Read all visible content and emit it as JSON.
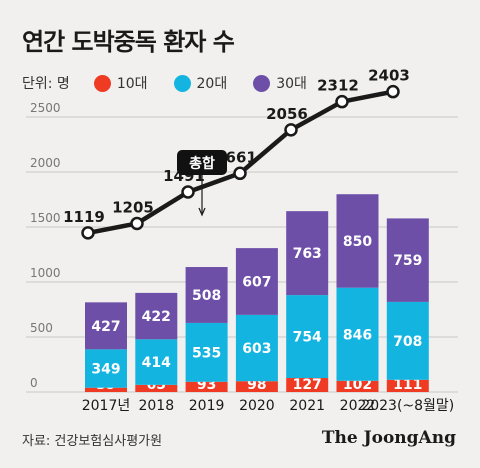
{
  "title": "연간 도박중독 환자 수",
  "legend": {
    "unit": "단위: 명",
    "items": [
      {
        "label": "10대",
        "color": "#ef3b24"
      },
      {
        "label": "20대",
        "color": "#13b5e0"
      },
      {
        "label": "30대",
        "color": "#6d4fa8"
      }
    ]
  },
  "source": "자료: 건강보험심사평가원",
  "brand": "The JoongAng",
  "chart_data": {
    "type": "bar",
    "stacked": true,
    "categories": [
      "2017년",
      "2018",
      "2019",
      "2020",
      "2021",
      "2022",
      "2023(~8월말)"
    ],
    "series": [
      {
        "name": "10대",
        "color": "#ef3b24",
        "values": [
          39,
          65,
          93,
          98,
          127,
          102,
          111
        ]
      },
      {
        "name": "20대",
        "color": "#13b5e0",
        "values": [
          349,
          414,
          535,
          603,
          754,
          846,
          708
        ]
      },
      {
        "name": "30대",
        "color": "#6d4fa8",
        "values": [
          427,
          422,
          508,
          607,
          763,
          850,
          759
        ]
      }
    ],
    "line": {
      "name": "총합",
      "values": [
        1119,
        1205,
        1491,
        1661,
        2056,
        2312,
        2403
      ]
    },
    "yticks": [
      0,
      500,
      1000,
      1500,
      2000,
      2500
    ],
    "ylim": [
      0,
      2500
    ],
    "grid": true
  }
}
